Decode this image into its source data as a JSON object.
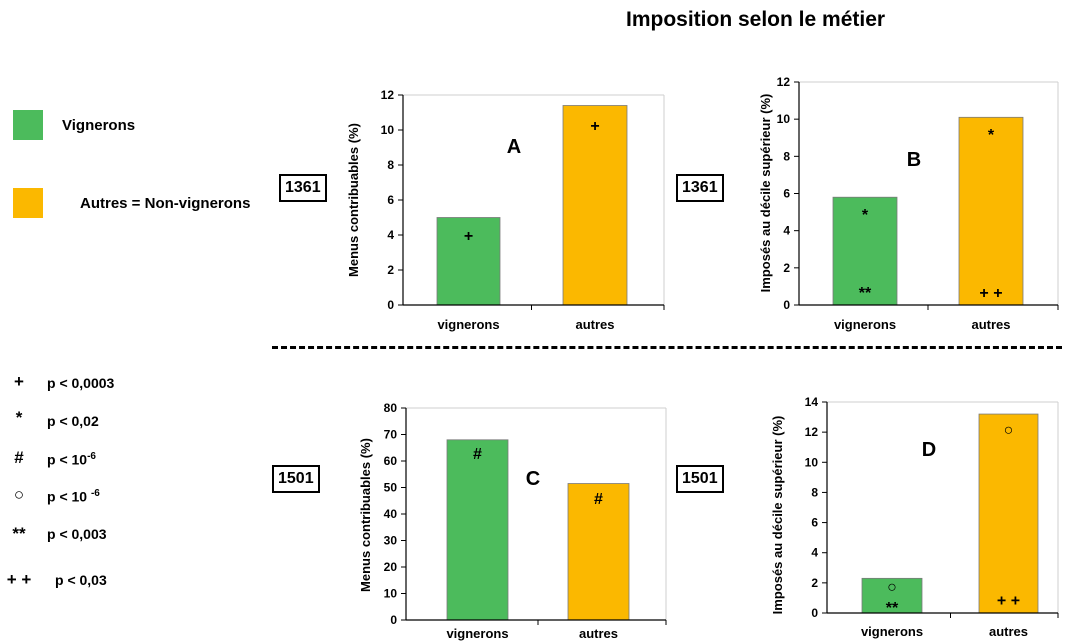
{
  "title": "Imposition selon le métier",
  "legend": [
    {
      "label": "Vignerons",
      "color": "#4cbb5c"
    },
    {
      "label": "Autres = Non-vignerons",
      "color": "#fbb800"
    }
  ],
  "significance": [
    {
      "symbol": "+",
      "text": "p < 0,0003",
      "exp": ""
    },
    {
      "symbol": "*",
      "text": "p < 0,02",
      "exp": ""
    },
    {
      "symbol": "#",
      "text": "p < 10",
      "exp": "-6"
    },
    {
      "symbol": "○",
      "text": "p < 10 ",
      "exp": "-6"
    },
    {
      "symbol": "**",
      "text": "p < 0,003",
      "exp": ""
    },
    {
      "symbol": "+ +",
      "text": "p < 0,03",
      "exp": ""
    }
  ],
  "year_labels": {
    "top": "1361",
    "bottom": "1501"
  },
  "chart_data": [
    {
      "type": "bar",
      "panel": "A",
      "year": "1361",
      "categories": [
        "vignerons",
        "autres"
      ],
      "values": [
        5.0,
        11.4
      ],
      "ylabel": "Menus contribuables (%)",
      "ylim": [
        0,
        12
      ],
      "yticks": [
        0,
        2,
        4,
        6,
        8,
        10,
        12
      ],
      "colors": [
        "#4cbb5c",
        "#fbb800"
      ],
      "markers": [
        {
          "bar": 0,
          "text": "+",
          "value": 4.0
        },
        {
          "bar": 1,
          "text": "+",
          "value": 10.3
        }
      ]
    },
    {
      "type": "bar",
      "panel": "B",
      "year": "1361",
      "categories": [
        "vignerons",
        "autres"
      ],
      "values": [
        5.8,
        10.1
      ],
      "ylabel": "Imposés au décile supérieur (%)",
      "ylim": [
        0,
        12
      ],
      "yticks": [
        0,
        2,
        4,
        6,
        8,
        10,
        12
      ],
      "colors": [
        "#4cbb5c",
        "#fbb800"
      ],
      "markers": [
        {
          "bar": 0,
          "text": "*",
          "value": 4.9
        },
        {
          "bar": 0,
          "text": "**",
          "value": 0.7
        },
        {
          "bar": 1,
          "text": "*",
          "value": 9.2
        },
        {
          "bar": 1,
          "text": "+ +",
          "value": 0.7
        }
      ]
    },
    {
      "type": "bar",
      "panel": "C",
      "year": "1501",
      "categories": [
        "vignerons",
        "autres"
      ],
      "values": [
        68,
        51.5
      ],
      "ylabel": "Menus contribuables (%)",
      "ylim": [
        0,
        80
      ],
      "yticks": [
        0,
        10,
        20,
        30,
        40,
        50,
        60,
        70,
        80
      ],
      "colors": [
        "#4cbb5c",
        "#fbb800"
      ],
      "markers": [
        {
          "bar": 0,
          "text": "#",
          "value": 63
        },
        {
          "bar": 1,
          "text": "#",
          "value": 46
        }
      ]
    },
    {
      "type": "bar",
      "panel": "D",
      "year": "1501",
      "categories": [
        "vignerons",
        "autres"
      ],
      "values": [
        2.3,
        13.2
      ],
      "ylabel": "Imposés au décile supérieur (%)",
      "ylim": [
        0,
        14
      ],
      "yticks": [
        0,
        2,
        4,
        6,
        8,
        10,
        12,
        14
      ],
      "colors": [
        "#4cbb5c",
        "#fbb800"
      ],
      "markers": [
        {
          "bar": 0,
          "text": "○",
          "value": 1.8
        },
        {
          "bar": 0,
          "text": "**",
          "value": 0.4
        },
        {
          "bar": 1,
          "text": "○",
          "value": 12.2
        },
        {
          "bar": 1,
          "text": "+ +",
          "value": 0.9
        }
      ]
    }
  ]
}
